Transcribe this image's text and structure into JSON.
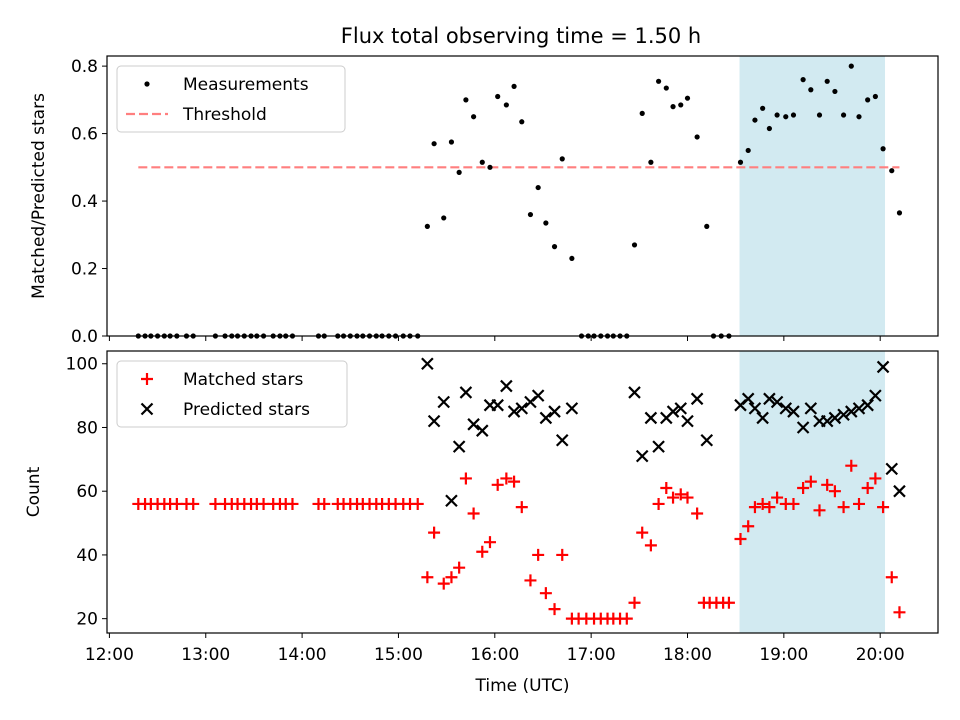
{
  "title": "Flux total observing time = 1.50 h",
  "chart_data": [
    {
      "type": "scatter",
      "ylabel": "Matched/Predicted stars",
      "xlabel": "",
      "xlim": [
        11.975,
        20.6
      ],
      "ylim": [
        0,
        0.83
      ],
      "yticks": [
        0.0,
        0.2,
        0.4,
        0.6,
        0.8
      ],
      "ytick_labels": [
        "0.0",
        "0.2",
        "0.4",
        "0.6",
        "0.8"
      ],
      "legend_position": "top-left",
      "highlight_span": {
        "x_start": 18.54,
        "x_end": 20.05,
        "color": "#add8e6"
      },
      "threshold": {
        "name": "Threshold",
        "y": 0.5,
        "x_start": 12.3,
        "x_end": 20.2,
        "color": "#ff7f7f",
        "style": "dashed"
      },
      "series": [
        {
          "name": "Measurements",
          "marker": "dot",
          "color": "#000000",
          "points": [
            [
              12.3,
              0
            ],
            [
              12.37,
              0
            ],
            [
              12.43,
              0
            ],
            [
              12.5,
              0
            ],
            [
              12.57,
              0
            ],
            [
              12.63,
              0
            ],
            [
              12.7,
              0
            ],
            [
              12.8,
              0
            ],
            [
              12.87,
              0
            ],
            [
              13.1,
              0
            ],
            [
              13.2,
              0
            ],
            [
              13.27,
              0
            ],
            [
              13.33,
              0
            ],
            [
              13.4,
              0
            ],
            [
              13.47,
              0
            ],
            [
              13.53,
              0
            ],
            [
              13.6,
              0
            ],
            [
              13.7,
              0
            ],
            [
              13.77,
              0
            ],
            [
              13.83,
              0
            ],
            [
              13.9,
              0
            ],
            [
              14.17,
              0
            ],
            [
              14.23,
              0
            ],
            [
              14.37,
              0
            ],
            [
              14.43,
              0
            ],
            [
              14.5,
              0
            ],
            [
              14.57,
              0
            ],
            [
              14.63,
              0
            ],
            [
              14.7,
              0
            ],
            [
              14.77,
              0
            ],
            [
              14.83,
              0
            ],
            [
              14.9,
              0
            ],
            [
              14.97,
              0
            ],
            [
              15.05,
              0
            ],
            [
              15.12,
              0
            ],
            [
              15.2,
              0
            ],
            [
              15.3,
              0.325
            ],
            [
              15.37,
              0.57
            ],
            [
              15.47,
              0.35
            ],
            [
              15.55,
              0.575
            ],
            [
              15.63,
              0.485
            ],
            [
              15.7,
              0.7
            ],
            [
              15.78,
              0.65
            ],
            [
              15.87,
              0.515
            ],
            [
              15.95,
              0.5
            ],
            [
              16.03,
              0.71
            ],
            [
              16.12,
              0.685
            ],
            [
              16.2,
              0.74
            ],
            [
              16.28,
              0.635
            ],
            [
              16.37,
              0.36
            ],
            [
              16.45,
              0.44
            ],
            [
              16.53,
              0.335
            ],
            [
              16.62,
              0.265
            ],
            [
              16.7,
              0.525
            ],
            [
              16.8,
              0.23
            ],
            [
              16.9,
              0
            ],
            [
              16.97,
              0
            ],
            [
              17.03,
              0
            ],
            [
              17.1,
              0
            ],
            [
              17.17,
              0
            ],
            [
              17.23,
              0
            ],
            [
              17.3,
              0
            ],
            [
              17.37,
              0
            ],
            [
              17.45,
              0.27
            ],
            [
              17.53,
              0.66
            ],
            [
              17.62,
              0.515
            ],
            [
              17.7,
              0.755
            ],
            [
              17.78,
              0.735
            ],
            [
              17.85,
              0.68
            ],
            [
              17.93,
              0.685
            ],
            [
              18.0,
              0.705
            ],
            [
              18.1,
              0.59
            ],
            [
              18.2,
              0.325
            ],
            [
              18.27,
              0
            ],
            [
              18.35,
              0
            ],
            [
              18.43,
              0
            ],
            [
              18.55,
              0.515
            ],
            [
              18.63,
              0.55
            ],
            [
              18.7,
              0.64
            ],
            [
              18.78,
              0.675
            ],
            [
              18.85,
              0.615
            ],
            [
              18.93,
              0.655
            ],
            [
              19.02,
              0.65
            ],
            [
              19.1,
              0.655
            ],
            [
              19.2,
              0.76
            ],
            [
              19.28,
              0.73
            ],
            [
              19.37,
              0.655
            ],
            [
              19.45,
              0.755
            ],
            [
              19.53,
              0.725
            ],
            [
              19.62,
              0.655
            ],
            [
              19.7,
              0.8
            ],
            [
              19.78,
              0.65
            ],
            [
              19.87,
              0.7
            ],
            [
              19.95,
              0.71
            ],
            [
              20.03,
              0.555
            ],
            [
              20.12,
              0.49
            ],
            [
              20.2,
              0.365
            ]
          ]
        }
      ]
    },
    {
      "type": "scatter",
      "ylabel": "Count",
      "xlabel": "Time (UTC)",
      "xlim": [
        11.975,
        20.6
      ],
      "ylim": [
        15.5,
        104
      ],
      "yticks": [
        20,
        40,
        60,
        80,
        100
      ],
      "ytick_labels": [
        "20",
        "40",
        "60",
        "80",
        "100"
      ],
      "xticks": [
        12,
        13,
        14,
        15,
        16,
        17,
        18,
        19,
        20
      ],
      "xtick_labels": [
        "12:00",
        "13:00",
        "14:00",
        "15:00",
        "16:00",
        "17:00",
        "18:00",
        "19:00",
        "20:00"
      ],
      "legend_position": "top-left",
      "highlight_span": {
        "x_start": 18.54,
        "x_end": 20.05,
        "color": "#add8e6"
      },
      "series": [
        {
          "name": "Matched stars",
          "marker": "plus",
          "color": "#ff0000",
          "points": [
            [
              12.3,
              56
            ],
            [
              12.37,
              56
            ],
            [
              12.43,
              56
            ],
            [
              12.5,
              56
            ],
            [
              12.57,
              56
            ],
            [
              12.63,
              56
            ],
            [
              12.7,
              56
            ],
            [
              12.8,
              56
            ],
            [
              12.87,
              56
            ],
            [
              13.1,
              56
            ],
            [
              13.2,
              56
            ],
            [
              13.27,
              56
            ],
            [
              13.33,
              56
            ],
            [
              13.4,
              56
            ],
            [
              13.47,
              56
            ],
            [
              13.53,
              56
            ],
            [
              13.6,
              56
            ],
            [
              13.7,
              56
            ],
            [
              13.77,
              56
            ],
            [
              13.83,
              56
            ],
            [
              13.9,
              56
            ],
            [
              14.17,
              56
            ],
            [
              14.23,
              56
            ],
            [
              14.37,
              56
            ],
            [
              14.43,
              56
            ],
            [
              14.5,
              56
            ],
            [
              14.57,
              56
            ],
            [
              14.63,
              56
            ],
            [
              14.7,
              56
            ],
            [
              14.77,
              56
            ],
            [
              14.83,
              56
            ],
            [
              14.9,
              56
            ],
            [
              14.97,
              56
            ],
            [
              15.05,
              56
            ],
            [
              15.12,
              56
            ],
            [
              15.2,
              56
            ],
            [
              15.3,
              33
            ],
            [
              15.37,
              47
            ],
            [
              15.47,
              31
            ],
            [
              15.55,
              33
            ],
            [
              15.63,
              36
            ],
            [
              15.7,
              64
            ],
            [
              15.78,
              53
            ],
            [
              15.87,
              41
            ],
            [
              15.95,
              44
            ],
            [
              16.03,
              62
            ],
            [
              16.12,
              64
            ],
            [
              16.2,
              63
            ],
            [
              16.28,
              55
            ],
            [
              16.37,
              32
            ],
            [
              16.45,
              40
            ],
            [
              16.53,
              28
            ],
            [
              16.62,
              23
            ],
            [
              16.7,
              40
            ],
            [
              16.8,
              20
            ],
            [
              16.87,
              20
            ],
            [
              16.95,
              20
            ],
            [
              17.03,
              20
            ],
            [
              17.1,
              20
            ],
            [
              17.17,
              20
            ],
            [
              17.23,
              20
            ],
            [
              17.3,
              20
            ],
            [
              17.37,
              20
            ],
            [
              17.45,
              25
            ],
            [
              17.53,
              47
            ],
            [
              17.62,
              43
            ],
            [
              17.7,
              56
            ],
            [
              17.78,
              61
            ],
            [
              17.85,
              58
            ],
            [
              17.93,
              59
            ],
            [
              18.0,
              58
            ],
            [
              18.1,
              53
            ],
            [
              18.17,
              25
            ],
            [
              18.23,
              25
            ],
            [
              18.3,
              25
            ],
            [
              18.37,
              25
            ],
            [
              18.43,
              25
            ],
            [
              18.55,
              45
            ],
            [
              18.63,
              49
            ],
            [
              18.7,
              55
            ],
            [
              18.78,
              56
            ],
            [
              18.85,
              55
            ],
            [
              18.93,
              58
            ],
            [
              19.02,
              56
            ],
            [
              19.1,
              56
            ],
            [
              19.2,
              61
            ],
            [
              19.28,
              63
            ],
            [
              19.37,
              54
            ],
            [
              19.45,
              62
            ],
            [
              19.53,
              60
            ],
            [
              19.62,
              55
            ],
            [
              19.7,
              68
            ],
            [
              19.78,
              56
            ],
            [
              19.87,
              61
            ],
            [
              19.95,
              64
            ],
            [
              20.03,
              55
            ],
            [
              20.12,
              33
            ],
            [
              20.2,
              22
            ]
          ]
        },
        {
          "name": "Predicted stars",
          "marker": "x",
          "color": "#000000",
          "points": [
            [
              15.3,
              100
            ],
            [
              15.37,
              82
            ],
            [
              15.47,
              88
            ],
            [
              15.55,
              57
            ],
            [
              15.63,
              74
            ],
            [
              15.7,
              91
            ],
            [
              15.78,
              81
            ],
            [
              15.87,
              79
            ],
            [
              15.95,
              87
            ],
            [
              16.03,
              87
            ],
            [
              16.12,
              93
            ],
            [
              16.2,
              85
            ],
            [
              16.28,
              86
            ],
            [
              16.37,
              88
            ],
            [
              16.45,
              90
            ],
            [
              16.53,
              83
            ],
            [
              16.62,
              85
            ],
            [
              16.7,
              76
            ],
            [
              16.8,
              86
            ],
            [
              17.45,
              91
            ],
            [
              17.53,
              71
            ],
            [
              17.62,
              83
            ],
            [
              17.7,
              74
            ],
            [
              17.78,
              83
            ],
            [
              17.85,
              85
            ],
            [
              17.93,
              86
            ],
            [
              18.0,
              82
            ],
            [
              18.1,
              89
            ],
            [
              18.2,
              76
            ],
            [
              18.55,
              87
            ],
            [
              18.63,
              89
            ],
            [
              18.7,
              86
            ],
            [
              18.78,
              83
            ],
            [
              18.85,
              89
            ],
            [
              18.93,
              88
            ],
            [
              19.02,
              86
            ],
            [
              19.1,
              85
            ],
            [
              19.2,
              80
            ],
            [
              19.28,
              86
            ],
            [
              19.37,
              82
            ],
            [
              19.45,
              82
            ],
            [
              19.53,
              83
            ],
            [
              19.62,
              84
            ],
            [
              19.7,
              85
            ],
            [
              19.78,
              86
            ],
            [
              19.87,
              87
            ],
            [
              19.95,
              90
            ],
            [
              20.03,
              99
            ],
            [
              20.12,
              67
            ],
            [
              20.2,
              60
            ]
          ]
        }
      ]
    }
  ]
}
